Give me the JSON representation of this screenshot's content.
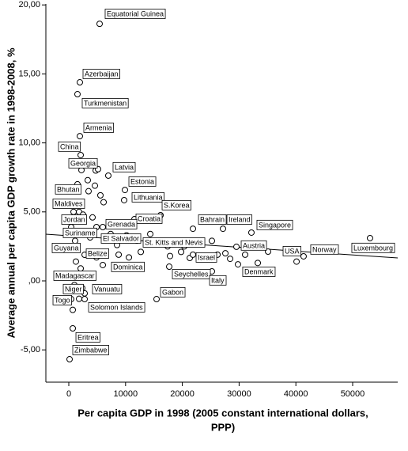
{
  "chart_data": {
    "type": "scatter",
    "x_label_lines": [
      "Per capita GDP in 1998 (2005 constant international dollars,",
      "PPP)"
    ],
    "y_label": "Average annual per capita GDP growth rate in 1998-2008, %",
    "xlim": [
      -4040,
      57940
    ],
    "ylim": [
      -7.34,
      20.07
    ],
    "xticks": [
      0,
      10000,
      20000,
      30000,
      40000,
      50000
    ],
    "yticks": [
      {
        "value": -5,
        "label": "-5,00"
      },
      {
        "value": 0,
        "label": ",00"
      },
      {
        "value": 5,
        "label": "5,00"
      },
      {
        "value": 10,
        "label": "10,00"
      },
      {
        "value": 15,
        "label": "15,00"
      },
      {
        "value": 20,
        "label": "20,00"
      }
    ],
    "color": "#000000",
    "x": [
      5430,
      1950,
      1530,
      1950,
      2090,
      2230,
      6960,
      9890,
      9750,
      840,
      970,
      16160,
      1530,
      11560,
      21870,
      27160,
      32170,
      5990,
      1250,
      3760,
      11980,
      53060,
      140,
      29530,
      35100,
      41360,
      2790,
      21310,
      5990,
      29800,
      17690,
      280,
      25210,
      140,
      2370,
      420,
      2790,
      15460,
      700,
      140,
      4740,
      5150,
      3340,
      1530,
      4600,
      5570,
      6130,
      3480,
      840,
      1810,
      2510,
      4180,
      4880,
      420,
      7380,
      8500,
      10170,
      14350,
      17410,
      19780,
      20340,
      23400,
      25210,
      26190,
      27580,
      28420,
      31060,
      33290,
      40120,
      1110,
      1250,
      2090,
      4320,
      4880,
      8780,
      10590,
      12680,
      17830,
      21870,
      980,
      1810,
      2790,
      700
    ],
    "values": [
      18.63,
      14.39,
      13.53,
      10.49,
      9.12,
      8.03,
      7.63,
      6.59,
      5.85,
      6.54,
      5.5,
      4.76,
      4.41,
      4.47,
      3.78,
      3.78,
      3.5,
      3.9,
      3.5,
      3.15,
      2.92,
      3.1,
      2.35,
      2.47,
      2.12,
      1.78,
      1.89,
      1.66,
      1.15,
      1.2,
      1.03,
      0.34,
      0.69,
      -0.57,
      -0.52,
      -1.32,
      -1.32,
      -1.32,
      -3.44,
      -5.68,
      8.0,
      8.1,
      7.3,
      7.0,
      6.9,
      6.2,
      5.7,
      6.5,
      5.0,
      5.0,
      4.8,
      4.6,
      3.9,
      3.9,
      3.4,
      2.6,
      3.3,
      3.4,
      2.5,
      2.1,
      2.5,
      2.9,
      2.9,
      1.9,
      2.0,
      1.6,
      1.9,
      1.3,
      1.4,
      2.9,
      1.4,
      0.9,
      2.0,
      1.7,
      1.9,
      1.7,
      2.1,
      1.8,
      1.9,
      -0.3,
      -1.3,
      -0.9,
      -2.1
    ],
    "point_labels": [
      "Equatorial Guinea",
      "Azerbaijan",
      "Turkmenistan",
      "Armenia",
      "China",
      "Georgia",
      "Latvia",
      "Estonia",
      "Lithuania",
      "Bhutan",
      "Maldives",
      "S.Korea",
      "Jordan",
      "Croatia",
      "Bahrain",
      "Ireland",
      "Singapore",
      "Grenada",
      "Suriname",
      "El Salvador",
      "St. Kitts and Nevis",
      "Luxembourg",
      "Guyana",
      "Austria",
      "USA",
      "Norway",
      "Belize",
      "Israel",
      "Dominica",
      "Denmark",
      "Seychelles",
      "Madagascar",
      "Italy",
      "Niger",
      "Vanuatu",
      "Togo",
      "Solomon Islands",
      "Gabon",
      "Eritrea",
      "Zimbabwe",
      null,
      null,
      null,
      null,
      null,
      null,
      null,
      null,
      null,
      null,
      null,
      null,
      null,
      null,
      null,
      null,
      null,
      null,
      null,
      null,
      null,
      null,
      null,
      null,
      null,
      null,
      null,
      null,
      null,
      null,
      null,
      null,
      null,
      null,
      null,
      null,
      null,
      null,
      null,
      null,
      null,
      null,
      null
    ],
    "fit_line": {
      "x": [
        -4040,
        57940
      ],
      "values": [
        3.38,
        1.66
      ]
    }
  }
}
